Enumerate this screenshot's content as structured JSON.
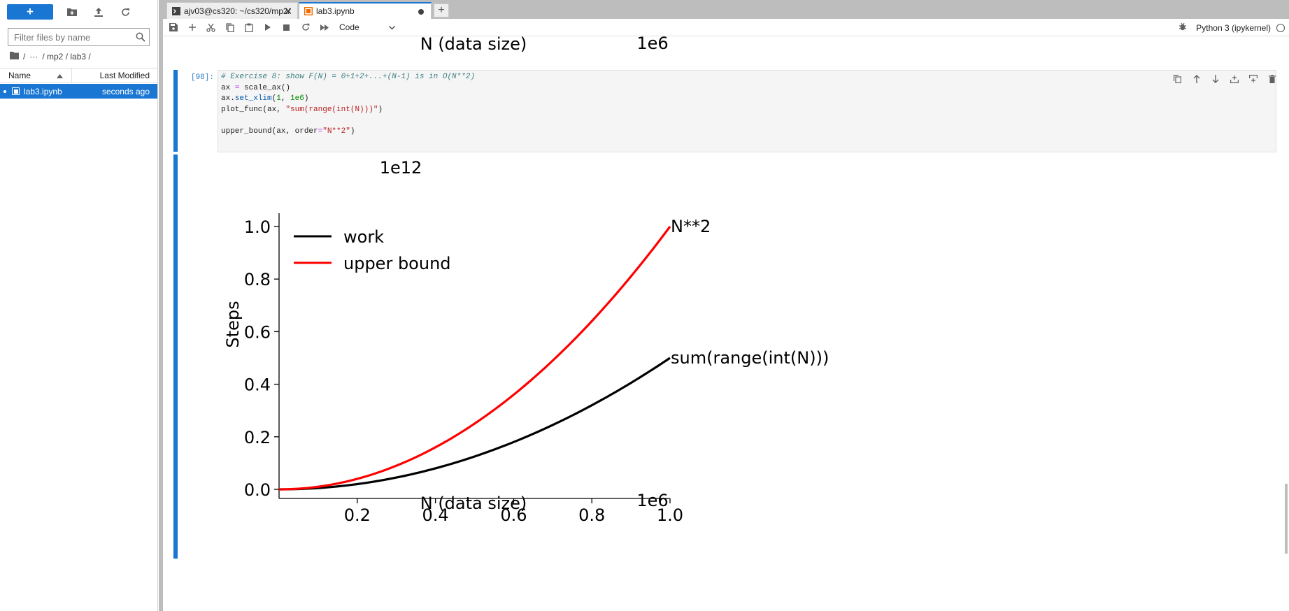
{
  "sidebar": {
    "new_label": "+",
    "filter_placeholder": "Filter files by name",
    "breadcrumb": {
      "sep1": "/",
      "ellipsis": "···",
      "path": "/ mp2 / lab3 /"
    },
    "headers": {
      "name": "Name",
      "modified": "Last Modified"
    },
    "files": [
      {
        "name": "lab3.ipynb",
        "modified": "seconds ago"
      }
    ]
  },
  "tabs": [
    {
      "label": "ajv03@cs320: ~/cs320/mp2/",
      "icon": "terminal-icon",
      "active": false
    },
    {
      "label": "lab3.ipynb",
      "icon": "notebook-icon",
      "active": true
    }
  ],
  "toolbar": {
    "cell_type": "Code",
    "kernel": "Python 3 (ipykernel)"
  },
  "prev_output": {
    "xlabel": "N (data size)",
    "offset": "1e6"
  },
  "cell": {
    "prompt": "[98]:",
    "code": {
      "l1": "# Exercise 8: show F(N) = 0+1+2+...+(N-1) is in O(N**2)",
      "l2a": "ax ",
      "l2b": "=",
      "l2c": " scale_ax()",
      "l3a": "ax.",
      "l3b": "set_xlim",
      "l3c": "(",
      "l3d": "1",
      "l3e": ", ",
      "l3f": "1e6",
      "l3g": ")",
      "l4a": "plot_func(ax, ",
      "l4b": "\"sum(range(int(N)))\"",
      "l4c": ")",
      "l6a": "upper_bound(ax, order",
      "l6b": "=",
      "l6c": "\"N**2\"",
      "l6d": ")"
    }
  },
  "chart_data": {
    "type": "line",
    "title": "",
    "xlabel": "N (data size)",
    "ylabel": "Steps",
    "x_offset_label": "1e6",
    "y_offset_label": "1e12",
    "xlim": [
      1,
      1000000
    ],
    "ylim": [
      0,
      1000000000000
    ],
    "x_ticks": [
      "0.2",
      "0.4",
      "0.6",
      "0.8",
      "1.0"
    ],
    "y_ticks": [
      "0.0",
      "0.2",
      "0.4",
      "0.6",
      "0.8",
      "1.0"
    ],
    "legend": {
      "placement": "top-left"
    },
    "series": [
      {
        "name": "work",
        "color": "#000000",
        "end_label": "sum(range(int(N)))",
        "x": [
          0,
          200000,
          400000,
          600000,
          800000,
          1000000
        ],
        "y": [
          0,
          20000000000,
          80000000000,
          180000000000,
          320000000000,
          500000000000
        ]
      },
      {
        "name": "upper bound",
        "color": "#ff0000",
        "end_label": "N**2",
        "x": [
          0,
          200000,
          400000,
          600000,
          800000,
          1000000
        ],
        "y": [
          0,
          40000000000,
          160000000000,
          360000000000,
          640000000000,
          1000000000000
        ]
      }
    ],
    "grid": false
  },
  "colors": {
    "accent": "#1976d2",
    "prompt": "#307fc1"
  }
}
